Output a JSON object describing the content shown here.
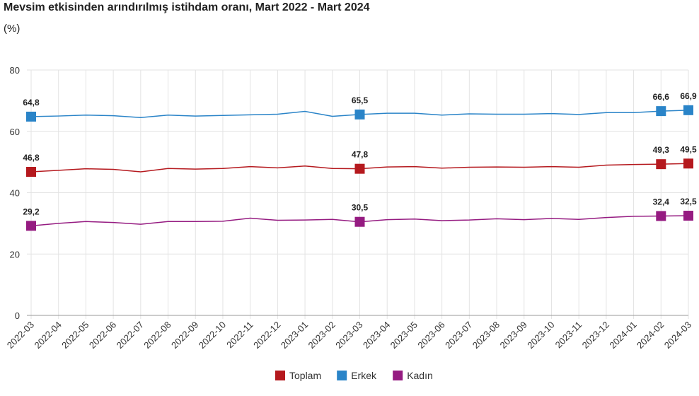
{
  "chart_data": {
    "type": "line",
    "title": "Mevsim etkisinden arındırılmış istihdam oranı, Mart 2022 - Mart 2024",
    "ylabel": "(%)",
    "xlabel": "",
    "ylim": [
      0,
      80
    ],
    "yticks": [
      "0",
      "20",
      "40",
      "60",
      "80"
    ],
    "grid": true,
    "legend_position": "bottom",
    "x": [
      "2022-03",
      "2022-04",
      "2022-05",
      "2022-06",
      "2022-07",
      "2022-08",
      "2022-09",
      "2022-10",
      "2022-11",
      "2022-12",
      "2023-01",
      "2023-02",
      "2023-03",
      "2023-04",
      "2023-05",
      "2023-06",
      "2023-07",
      "2023-08",
      "2023-09",
      "2023-10",
      "2023-11",
      "2023-12",
      "2024-01",
      "2024-02",
      "2024-03"
    ],
    "labeled_indices": [
      0,
      12,
      23,
      24
    ],
    "series": [
      {
        "name": "Toplam",
        "color": "#b5191e",
        "values": [
          46.8,
          47.3,
          47.8,
          47.6,
          46.8,
          47.9,
          47.7,
          47.9,
          48.5,
          48.1,
          48.7,
          47.9,
          47.8,
          48.4,
          48.5,
          48.0,
          48.3,
          48.4,
          48.3,
          48.5,
          48.3,
          49.0,
          49.2,
          49.3,
          49.5
        ],
        "labels": [
          "46,8",
          "47,8",
          "49,3",
          "49,5"
        ]
      },
      {
        "name": "Erkek",
        "color": "#2a84c8",
        "values": [
          64.8,
          65.0,
          65.3,
          65.1,
          64.5,
          65.3,
          65.0,
          65.2,
          65.4,
          65.6,
          66.5,
          64.9,
          65.5,
          65.9,
          65.9,
          65.3,
          65.7,
          65.6,
          65.6,
          65.8,
          65.5,
          66.1,
          66.1,
          66.6,
          66.9
        ],
        "labels": [
          "64,8",
          "65,5",
          "66,6",
          "66,9"
        ]
      },
      {
        "name": "Kadın",
        "color": "#951b81",
        "values": [
          29.2,
          30.0,
          30.6,
          30.3,
          29.7,
          30.6,
          30.6,
          30.7,
          31.7,
          31.0,
          31.1,
          31.3,
          30.5,
          31.2,
          31.4,
          30.9,
          31.1,
          31.5,
          31.2,
          31.6,
          31.3,
          31.9,
          32.3,
          32.4,
          32.5
        ],
        "labels": [
          "29,2",
          "30,5",
          "32,4",
          "32,5"
        ]
      }
    ]
  }
}
